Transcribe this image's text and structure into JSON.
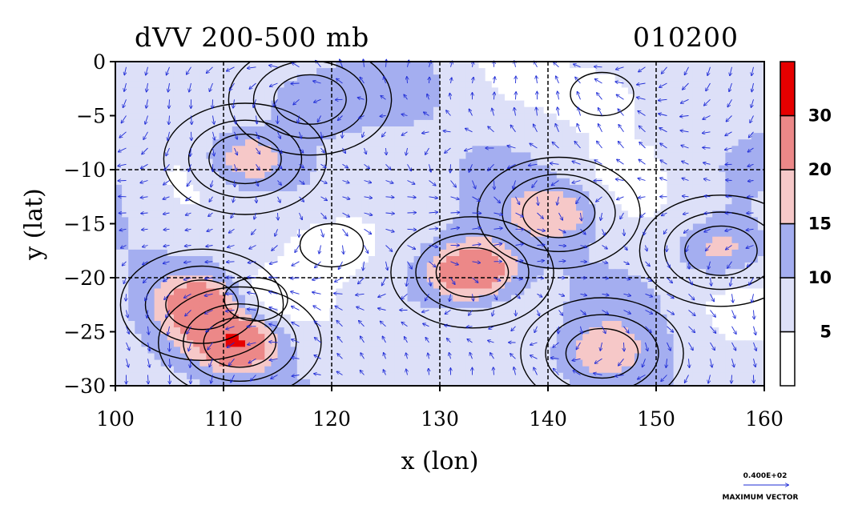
{
  "chart_data": {
    "type": "heatmap",
    "title": "dVV 200-500 mb",
    "date_label": "010200",
    "xlabel": "x (lon)",
    "ylabel": "y (lat)",
    "xlim": [
      100,
      160
    ],
    "ylim": [
      -30,
      0
    ],
    "x_ticks": [
      "100",
      "110",
      "120",
      "130",
      "140",
      "150",
      "160"
    ],
    "y_ticks": [
      "0",
      "−5",
      "−10",
      "−15",
      "−20",
      "−25",
      "−30"
    ],
    "grid": true,
    "colorbar": {
      "levels": [
        0,
        5,
        10,
        15,
        20,
        30
      ],
      "labels": [
        "30",
        "20",
        "15",
        "10",
        "5"
      ],
      "colors": [
        "#ffffff",
        "#dde0f8",
        "#a4aef0",
        "#f6c8c8",
        "#ec8888",
        "#e60000"
      ]
    },
    "max_vector": {
      "value": "0.400E+02",
      "label": "MAXIMUM VECTOR"
    },
    "features": [
      {
        "type": "max",
        "lon": 111.5,
        "lat": -26.0,
        "value": 30
      },
      {
        "type": "max",
        "lon": 133.0,
        "lat": -19.5,
        "value": 30
      },
      {
        "type": "max",
        "lon": 108.0,
        "lat": -22.5,
        "value": 25
      },
      {
        "type": "max",
        "lon": 141.0,
        "lat": -14.0,
        "value": 20
      },
      {
        "type": "max",
        "lon": 112.0,
        "lat": -9.0,
        "value": 22
      },
      {
        "type": "max",
        "lon": 118.0,
        "lat": -3.5,
        "value": 17
      },
      {
        "type": "max",
        "lon": 156.0,
        "lat": -17.5,
        "value": 20
      },
      {
        "type": "max",
        "lon": 145.0,
        "lat": -27.0,
        "value": 18
      },
      {
        "type": "min",
        "lon": 145.0,
        "lat": -3.0,
        "value": 3
      },
      {
        "type": "min",
        "lon": 120.0,
        "lat": -17.0,
        "value": 5
      },
      {
        "type": "min",
        "lon": 113.0,
        "lat": -22.0,
        "value": 4
      }
    ]
  },
  "colors": {
    "axis": "#000000",
    "vector": "#1e2bd6",
    "grid": "#000000"
  }
}
